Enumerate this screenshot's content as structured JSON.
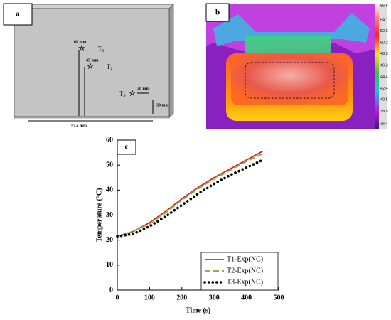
{
  "panel_a": {
    "label": "a",
    "dims": {
      "d65": "65 mm",
      "d45": "45 mm",
      "d20": "20 mm",
      "d30": "30 mm",
      "d575": "57.5 mm"
    },
    "points": [
      {
        "name": "T",
        "sub": "1"
      },
      {
        "name": "T",
        "sub": "2"
      },
      {
        "name": "T",
        "sub": "3"
      }
    ]
  },
  "panel_b": {
    "label": "b",
    "colorbar_ticks": [
      56.5,
      54.1,
      52.2,
      50.2,
      48.3,
      46.3,
      44.4,
      42.4,
      40.5,
      38.5,
      36.4
    ]
  },
  "chart_data": {
    "type": "line",
    "panel_label": "c",
    "xlabel": "Time (s)",
    "ylabel": "Temperature (°C)",
    "x": [
      0,
      50,
      100,
      150,
      200,
      250,
      300,
      350,
      400,
      450
    ],
    "series": [
      {
        "name": "T1-Exp(NC)",
        "color": "#e0201c",
        "style": "solid",
        "values": [
          21.5,
          23.5,
          27,
          31.5,
          36.5,
          41,
          45,
          48.5,
          52,
          55.5
        ]
      },
      {
        "name": "T2-Exp(NC)",
        "color": "#8db150",
        "style": "dashed",
        "values": [
          21.5,
          23.5,
          26.5,
          31,
          36,
          40.5,
          44.5,
          48,
          51.5,
          54.5
        ]
      },
      {
        "name": "T3-Exp(NC)",
        "color": "#000000",
        "style": "dotted",
        "values": [
          21.5,
          22.5,
          25.5,
          29.5,
          34,
          38.5,
          42.5,
          46,
          49,
          52
        ]
      }
    ],
    "xlim": [
      0,
      500
    ],
    "xticks": [
      0,
      100,
      200,
      300,
      400,
      500
    ],
    "ylim": [
      0,
      60
    ],
    "yticks": [
      0,
      10,
      20,
      30,
      40,
      50,
      60
    ],
    "grid": false,
    "legend": "lower right"
  }
}
